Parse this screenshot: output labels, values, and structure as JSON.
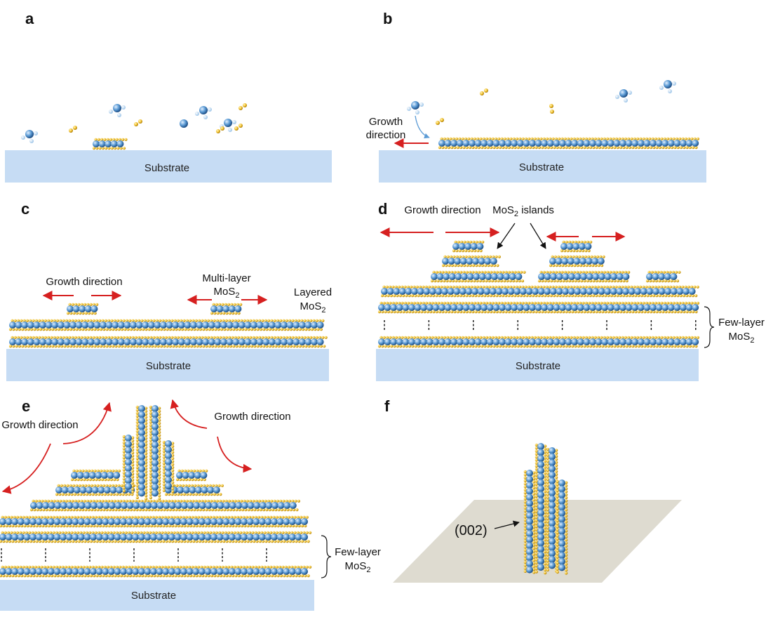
{
  "panels": {
    "a": {
      "label": "a",
      "substrate": "Substrate"
    },
    "b": {
      "label": "b",
      "substrate": "Substrate",
      "growth_line1": "Growth",
      "growth_line2": "direction"
    },
    "c": {
      "label": "c",
      "substrate": "Substrate",
      "growth": "Growth direction",
      "multilayer_line1": "Multi-layer",
      "multilayer_line2": "MoS",
      "multilayer_sub": "2",
      "layered_line1": "Layered",
      "layered_line2": "MoS",
      "layered_sub": "2"
    },
    "d": {
      "label": "d",
      "substrate": "Substrate",
      "growth": "Growth direction",
      "islands_pre": "MoS",
      "islands_sub": "2",
      "islands_post": " islands",
      "fewlayer_line1": "Few-layer",
      "fewlayer_line2": "MoS",
      "fewlayer_sub": "2"
    },
    "e": {
      "label": "e",
      "substrate": "Substrate",
      "growth_left": "Growth direction",
      "growth_right": "Growth direction",
      "fewlayer_line1": "Few-layer",
      "fewlayer_line2": "MoS",
      "fewlayer_sub": "2"
    },
    "f": {
      "label": "f",
      "plane": "(002)"
    }
  },
  "colors": {
    "substrate": "#c6dcf4",
    "mo_atom": "#5b9bd5",
    "s_atom": "#f2c12e",
    "arrow": "#d62020",
    "plane": "#dedbd0"
  }
}
